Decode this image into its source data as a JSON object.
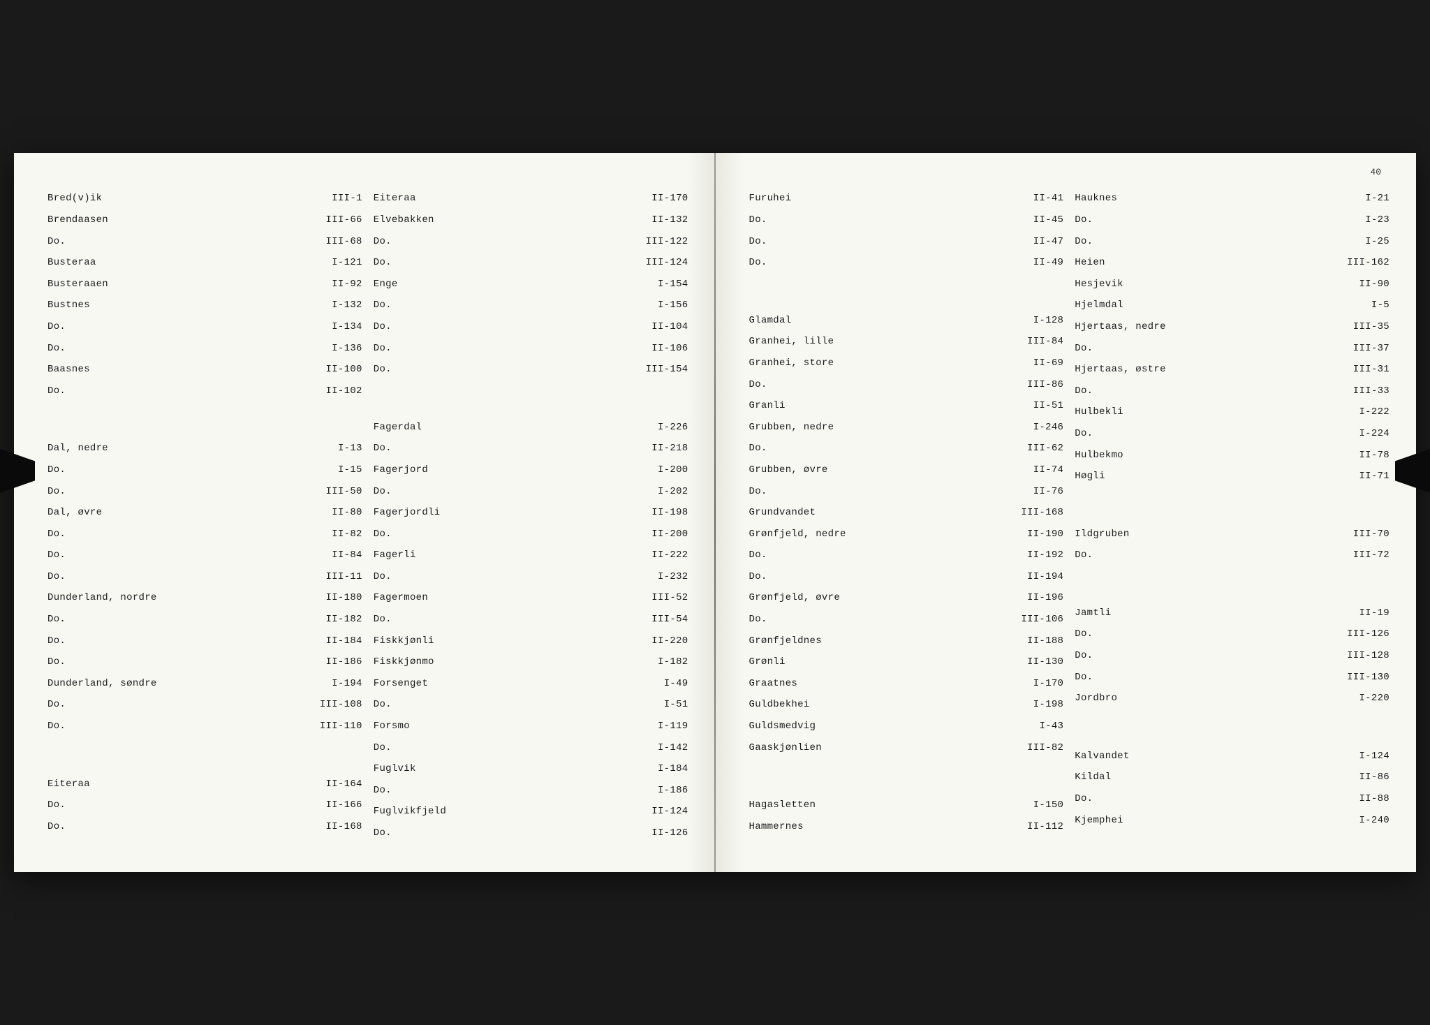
{
  "page_number": "40",
  "left_page": {
    "col1": [
      {
        "name": "Bred(v)ik",
        "ref": "III-1"
      },
      {
        "name": "Brendaasen",
        "ref": "III-66"
      },
      {
        "name": "Do.",
        "ref": "III-68"
      },
      {
        "name": "Busteraa",
        "ref": "I-121"
      },
      {
        "name": "Busteraaen",
        "ref": "II-92"
      },
      {
        "name": "Bustnes",
        "ref": "I-132"
      },
      {
        "name": "Do.",
        "ref": "I-134"
      },
      {
        "name": "Do.",
        "ref": "I-136"
      },
      {
        "name": "Baasnes",
        "ref": "II-100"
      },
      {
        "name": "Do.",
        "ref": "II-102"
      },
      {
        "spacer": true
      },
      {
        "spacer": true
      },
      {
        "name": "Dal, nedre",
        "ref": "I-13"
      },
      {
        "name": "Do.",
        "ref": "I-15"
      },
      {
        "name": "Do.",
        "ref": "III-50"
      },
      {
        "name": "Dal, øvre",
        "ref": "II-80"
      },
      {
        "name": "Do.",
        "ref": "II-82"
      },
      {
        "name": "Do.",
        "ref": "II-84"
      },
      {
        "name": "Do.",
        "ref": "III-11"
      },
      {
        "name": "Dunderland, nordre",
        "ref": "II-180"
      },
      {
        "name": "Do.",
        "ref": "II-182"
      },
      {
        "name": "Do.",
        "ref": "II-184"
      },
      {
        "name": "Do.",
        "ref": "II-186"
      },
      {
        "name": "Dunderland, søndre",
        "ref": "I-194"
      },
      {
        "name": "Do.",
        "ref": "III-108"
      },
      {
        "name": "Do.",
        "ref": "III-110"
      },
      {
        "spacer": true
      },
      {
        "spacer": true
      },
      {
        "name": "Eiteraa",
        "ref": "II-164"
      },
      {
        "name": "Do.",
        "ref": "II-166"
      },
      {
        "name": "Do.",
        "ref": "II-168"
      }
    ],
    "col2": [
      {
        "name": "Eiteraa",
        "ref": "II-170"
      },
      {
        "name": "Elvebakken",
        "ref": "II-132"
      },
      {
        "name": "Do.",
        "ref": "III-122"
      },
      {
        "name": "Do.",
        "ref": "III-124"
      },
      {
        "name": "Enge",
        "ref": "I-154"
      },
      {
        "name": "Do.",
        "ref": "I-156"
      },
      {
        "name": "Do.",
        "ref": "II-104"
      },
      {
        "name": "Do.",
        "ref": "II-106"
      },
      {
        "name": "Do.",
        "ref": "III-154"
      },
      {
        "spacer": true
      },
      {
        "spacer": true
      },
      {
        "name": "Fagerdal",
        "ref": "I-226"
      },
      {
        "name": "Do.",
        "ref": "II-218"
      },
      {
        "name": "Fagerjord",
        "ref": "I-200"
      },
      {
        "name": "Do.",
        "ref": "I-202"
      },
      {
        "name": "Fagerjordli",
        "ref": "II-198"
      },
      {
        "name": "Do.",
        "ref": "II-200"
      },
      {
        "name": "Fagerli",
        "ref": "II-222"
      },
      {
        "name": "Do.",
        "ref": "I-232"
      },
      {
        "name": "Fagermoen",
        "ref": "III-52"
      },
      {
        "name": "Do.",
        "ref": "III-54"
      },
      {
        "name": "Fiskkjønli",
        "ref": "II-220"
      },
      {
        "name": "Fiskkjønmo",
        "ref": "I-182"
      },
      {
        "name": "Forsenget",
        "ref": "I-49"
      },
      {
        "name": "Do.",
        "ref": "I-51"
      },
      {
        "name": "Forsmo",
        "ref": "I-119"
      },
      {
        "name": "Do.",
        "ref": "I-142"
      },
      {
        "name": "Fuglvik",
        "ref": "I-184"
      },
      {
        "name": "Do.",
        "ref": "I-186"
      },
      {
        "name": "Fuglvikfjeld",
        "ref": "II-124"
      },
      {
        "name": "Do.",
        "ref": "II-126"
      }
    ]
  },
  "right_page": {
    "col1": [
      {
        "name": "Furuhei",
        "ref": "II-41"
      },
      {
        "name": "Do.",
        "ref": "II-45"
      },
      {
        "name": "Do.",
        "ref": "II-47"
      },
      {
        "name": "Do.",
        "ref": "II-49"
      },
      {
        "spacer": true
      },
      {
        "spacer": true
      },
      {
        "name": "Glamdal",
        "ref": "I-128"
      },
      {
        "name": "Granhei, lille",
        "ref": "III-84"
      },
      {
        "name": "Granhei, store",
        "ref": "II-69"
      },
      {
        "name": "Do.",
        "ref": "III-86"
      },
      {
        "name": "Granli",
        "ref": "II-51"
      },
      {
        "name": "Grubben, nedre",
        "ref": "I-246"
      },
      {
        "name": "Do.",
        "ref": "III-62"
      },
      {
        "name": "Grubben, øvre",
        "ref": "II-74"
      },
      {
        "name": "Do.",
        "ref": "II-76"
      },
      {
        "name": "Grundvandet",
        "ref": "III-168"
      },
      {
        "name": "Grønfjeld, nedre",
        "ref": "II-190"
      },
      {
        "name": "Do.",
        "ref": "II-192"
      },
      {
        "name": "Do.",
        "ref": "II-194"
      },
      {
        "name": "Grønfjeld, øvre",
        "ref": "II-196"
      },
      {
        "name": "Do.",
        "ref": "III-106"
      },
      {
        "name": "Grønfjeldnes",
        "ref": "II-188"
      },
      {
        "name": "Grønli",
        "ref": "II-130"
      },
      {
        "name": "Graatnes",
        "ref": "I-170"
      },
      {
        "name": "Guldbekhei",
        "ref": "I-198"
      },
      {
        "name": "Guldsmedvig",
        "ref": "I-43"
      },
      {
        "name": "Gaaskjønlien",
        "ref": "III-82"
      },
      {
        "spacer": true
      },
      {
        "spacer": true
      },
      {
        "name": "Hagasletten",
        "ref": "I-150"
      },
      {
        "name": "Hammernes",
        "ref": "II-112"
      }
    ],
    "col2": [
      {
        "name": "Hauknes",
        "ref": "I-21"
      },
      {
        "name": "Do.",
        "ref": "I-23"
      },
      {
        "name": "Do.",
        "ref": "I-25"
      },
      {
        "name": "Heien",
        "ref": "III-162"
      },
      {
        "name": "Hesjevik",
        "ref": "II-90"
      },
      {
        "name": "Hjelmdal",
        "ref": "I-5"
      },
      {
        "name": "Hjertaas, nedre",
        "ref": "III-35"
      },
      {
        "name": "Do.",
        "ref": "III-37"
      },
      {
        "name": "Hjertaas, østre",
        "ref": "III-31"
      },
      {
        "name": "Do.",
        "ref": "III-33"
      },
      {
        "name": "Hulbekli",
        "ref": "I-222"
      },
      {
        "name": "Do.",
        "ref": "I-224"
      },
      {
        "name": "Hulbekmo",
        "ref": "II-78"
      },
      {
        "name": "Høgli",
        "ref": "II-71"
      },
      {
        "spacer": true
      },
      {
        "spacer": true
      },
      {
        "name": "Ildgruben",
        "ref": "III-70"
      },
      {
        "name": "Do.",
        "ref": "III-72"
      },
      {
        "spacer": true
      },
      {
        "spacer": true
      },
      {
        "name": "Jamtli",
        "ref": "II-19"
      },
      {
        "name": "Do.",
        "ref": "III-126"
      },
      {
        "name": "Do.",
        "ref": "III-128"
      },
      {
        "name": "Do.",
        "ref": "III-130"
      },
      {
        "name": "Jordbro",
        "ref": "I-220"
      },
      {
        "spacer": true
      },
      {
        "spacer": true
      },
      {
        "name": "Kalvandet",
        "ref": "I-124"
      },
      {
        "name": "Kildal",
        "ref": "II-86"
      },
      {
        "name": "Do.",
        "ref": "II-88"
      },
      {
        "name": "Kjemphei",
        "ref": "I-240"
      }
    ]
  }
}
